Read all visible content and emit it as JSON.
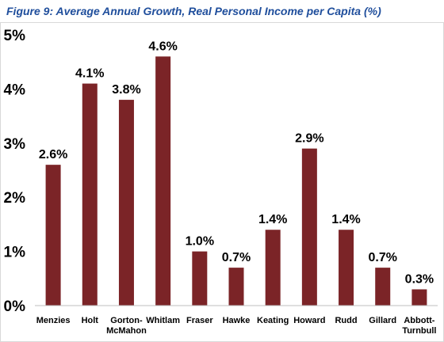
{
  "figure": {
    "title": "Figure 9: Average Annual Growth, Real Personal Income per Capita (%)"
  },
  "chart_data": {
    "type": "bar",
    "title": "Figure 9: Average Annual Growth, Real Personal Income per Capita (%)",
    "xlabel": "",
    "ylabel": "",
    "categories": [
      "Menzies",
      "Holt",
      "Gorton-McMahon",
      "Whitlam",
      "Fraser",
      "Hawke",
      "Keating",
      "Howard",
      "Rudd",
      "Gillard",
      "Abbott-Turnbull"
    ],
    "category_lines": [
      [
        "Menzies"
      ],
      [
        "Holt"
      ],
      [
        "Gorton-",
        "McMahon"
      ],
      [
        "Whitlam"
      ],
      [
        "Fraser"
      ],
      [
        "Hawke"
      ],
      [
        "Keating"
      ],
      [
        "Howard"
      ],
      [
        "Rudd"
      ],
      [
        "Gillard"
      ],
      [
        "Abbott-",
        "Turnbull"
      ]
    ],
    "values": [
      2.6,
      4.1,
      3.8,
      4.6,
      1.0,
      0.7,
      1.4,
      2.9,
      1.4,
      0.7,
      0.3
    ],
    "data_labels": [
      "2.6%",
      "4.1%",
      "3.8%",
      "4.6%",
      "1.0%",
      "0.7%",
      "1.4%",
      "2.9%",
      "1.4%",
      "0.7%",
      "0.3%"
    ],
    "yticks": [
      0,
      1,
      2,
      3,
      4,
      5
    ],
    "ytick_labels": [
      "0%",
      "1%",
      "2%",
      "3%",
      "4%",
      "5%"
    ],
    "ylim": [
      0,
      5
    ],
    "grid": false,
    "legend": "none",
    "bar_color": "#7b2427"
  }
}
